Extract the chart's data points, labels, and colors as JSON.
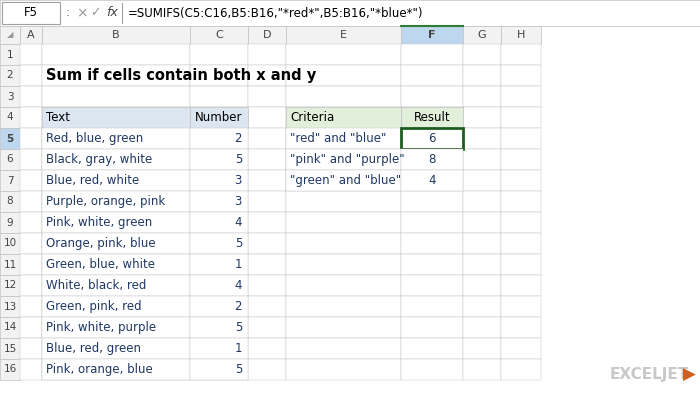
{
  "title": "Sum if cells contain both x and y",
  "formula_bar_cell": "F5",
  "formula_bar_text": "=SUMIFS(C5:C16,B5:B16,\"*red*\",B5:B16,\"*blue*\")",
  "col_headers": [
    "A",
    "B",
    "C",
    "D",
    "E",
    "F",
    "G",
    "H"
  ],
  "left_table_header": [
    "Text",
    "Number"
  ],
  "left_table_data": [
    [
      "Red, blue, green",
      "2"
    ],
    [
      "Black, gray, white",
      "5"
    ],
    [
      "Blue, red, white",
      "3"
    ],
    [
      "Purple, orange, pink",
      "3"
    ],
    [
      "Pink, white, green",
      "4"
    ],
    [
      "Orange, pink, blue",
      "5"
    ],
    [
      "Green, blue, white",
      "1"
    ],
    [
      "White, black, red",
      "4"
    ],
    [
      "Green, pink, red",
      "2"
    ],
    [
      "Pink, white, purple",
      "5"
    ],
    [
      "Blue, red, green",
      "1"
    ],
    [
      "Pink, orange, blue",
      "5"
    ]
  ],
  "right_table_header": [
    "Criteria",
    "Result"
  ],
  "right_table_data": [
    [
      "\"red\" and \"blue\"",
      "6"
    ],
    [
      "\"pink\" and \"purple\"",
      "8"
    ],
    [
      "\"green\" and \"blue\"",
      "4"
    ]
  ],
  "bg_color": "#ffffff",
  "header_row_color": "#dce6f1",
  "right_header_color": "#e2efda",
  "selected_cell_border": "#1f5c1f",
  "grid_color": "#c0c0c0",
  "formula_bar_bg": "#f2f2f2",
  "col_header_bg": "#f2f2f2",
  "col_header_selected_bg": "#bdd7ee",
  "row_header_bg": "#f2f2f2",
  "row_header_selected_bg": "#bdd7ee",
  "text_color": "#1f3864",
  "header_text_color": "#000000",
  "cell_fontsize": 8.5,
  "header_fontsize": 8.5,
  "formula_fontsize": 8.5,
  "title_fontsize": 10.5
}
